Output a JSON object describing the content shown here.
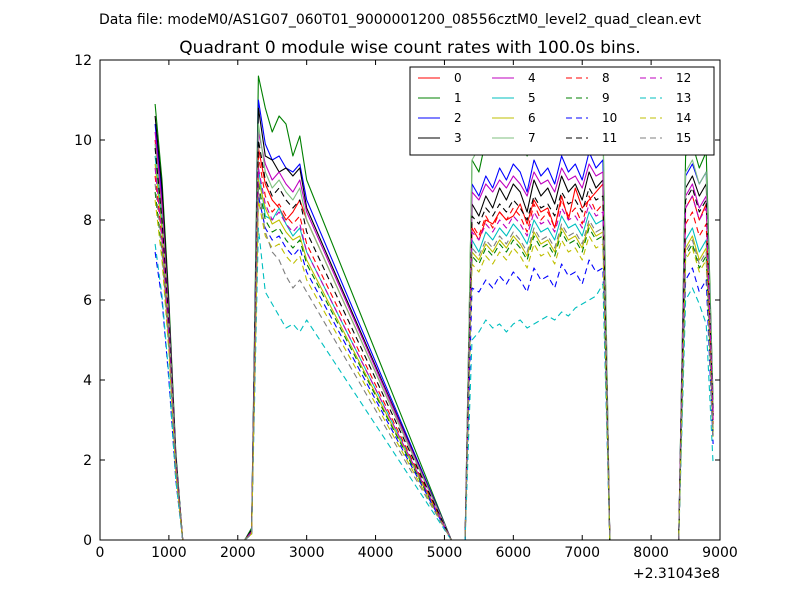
{
  "suptitle": "Data file: modeM0/AS1G07_060T01_9000001200_08556cztM0_level2_quad_clean.evt",
  "chart_data": {
    "type": "line",
    "title": "Quadrant 0 module wise count rates with 100.0s bins.",
    "xlabel": "",
    "ylabel": "",
    "x_offset_label": "+2.31043e8",
    "xlim": [
      0,
      9000
    ],
    "ylim": [
      0,
      12
    ],
    "xticks": [
      0,
      1000,
      2000,
      3000,
      4000,
      5000,
      6000,
      7000,
      8000,
      9000
    ],
    "yticks": [
      0,
      2,
      4,
      6,
      8,
      10,
      12
    ],
    "grid": false,
    "legend_position": "top-right",
    "segments": [
      {
        "start": 800,
        "n": 5
      },
      {
        "start": 2100,
        "n": 10
      },
      {
        "start": 5100,
        "n": 23
      },
      {
        "start": 7400,
        "n": 3
      },
      {
        "start": 8300,
        "n": 7
      }
    ],
    "series": [
      {
        "name": "0",
        "color": "#ff0000",
        "dash": "solid",
        "y": [
          [
            10.0,
            8.2,
            5.5,
            2.0,
            0
          ],
          [
            0,
            0.2,
            9.8,
            8.9,
            8.5,
            8.3,
            8.0,
            8.2,
            8.5,
            8.0
          ],
          [
            0,
            0,
            0,
            7.8,
            7.5,
            8.0,
            7.9,
            8.2,
            8.0,
            8.1,
            8.4,
            7.9,
            8.5,
            8.2,
            8.3,
            7.8,
            8.6,
            8.0,
            8.8,
            8.3,
            8.5,
            8.7,
            8.9
          ],
          [
            0,
            0,
            0
          ],
          [
            0,
            0,
            8.3,
            8.6,
            8.0,
            8.4,
            3.0
          ]
        ]
      },
      {
        "name": "1",
        "color": "#008000",
        "dash": "solid",
        "y": [
          [
            10.9,
            9.0,
            6.0,
            2.2,
            0
          ],
          [
            0,
            0.3,
            11.6,
            10.8,
            10.2,
            10.6,
            10.4,
            9.6,
            10.1,
            9.0
          ],
          [
            0,
            0,
            0,
            9.5,
            9.2,
            10.0,
            9.8,
            10.2,
            9.9,
            10.3,
            10.1,
            9.6,
            10.4,
            10.0,
            10.2,
            9.8,
            10.5,
            10.1,
            10.3,
            9.9,
            10.6,
            10.2,
            10.4
          ],
          [
            0,
            0,
            0
          ],
          [
            0,
            0,
            9.6,
            9.9,
            9.3,
            9.7,
            3.5
          ]
        ]
      },
      {
        "name": "2",
        "color": "#0000ff",
        "dash": "solid",
        "y": [
          [
            10.4,
            8.6,
            5.7,
            2.1,
            0
          ],
          [
            0,
            0.25,
            11.0,
            9.9,
            9.5,
            9.6,
            9.3,
            9.2,
            9.4,
            8.5
          ],
          [
            0,
            0,
            0,
            8.9,
            8.6,
            9.1,
            8.8,
            9.3,
            9.0,
            9.4,
            9.2,
            8.7,
            9.5,
            9.1,
            9.3,
            8.9,
            9.6,
            9.2,
            9.4,
            9.0,
            9.7,
            9.3,
            9.5
          ],
          [
            0,
            0,
            0
          ],
          [
            0,
            0,
            9.1,
            9.4,
            8.9,
            9.2,
            3.3
          ]
        ]
      },
      {
        "name": "3",
        "color": "#000000",
        "dash": "solid",
        "y": [
          [
            10.6,
            8.8,
            5.8,
            2.1,
            0
          ],
          [
            0,
            0.25,
            10.8,
            9.6,
            9.5,
            9.2,
            9.3,
            9.1,
            9.3,
            8.3
          ],
          [
            0,
            0,
            0,
            8.4,
            8.1,
            8.6,
            8.3,
            8.8,
            8.5,
            8.9,
            8.7,
            8.2,
            9.0,
            8.6,
            8.8,
            8.4,
            9.1,
            8.7,
            8.9,
            8.5,
            9.2,
            8.8,
            9.0
          ],
          [
            0,
            0,
            0
          ],
          [
            0,
            0,
            8.8,
            9.1,
            8.6,
            8.9,
            3.2
          ]
        ]
      },
      {
        "name": "4",
        "color": "#bf00bf",
        "dash": "solid",
        "y": [
          [
            10.2,
            8.4,
            5.6,
            2.0,
            0
          ],
          [
            0,
            0.2,
            10.2,
            9.4,
            9.0,
            9.2,
            8.9,
            8.7,
            9.0,
            8.2
          ],
          [
            0,
            0,
            0,
            8.7,
            8.5,
            8.9,
            8.7,
            9.0,
            8.8,
            9.1,
            8.9,
            8.6,
            9.2,
            8.9,
            9.0,
            8.7,
            9.3,
            9.0,
            9.1,
            8.8,
            9.4,
            9.1,
            9.2
          ],
          [
            0,
            0,
            0
          ],
          [
            0,
            0,
            8.6,
            8.9,
            8.3,
            8.6,
            3.1
          ]
        ]
      },
      {
        "name": "5",
        "color": "#00bfbf",
        "dash": "solid",
        "y": [
          [
            9.6,
            7.9,
            5.3,
            1.9,
            0
          ],
          [
            0,
            0.2,
            9.3,
            8.1,
            8.0,
            8.3,
            7.9,
            7.6,
            7.8,
            7.2
          ],
          [
            0,
            0,
            0,
            7.5,
            7.2,
            7.7,
            7.5,
            7.8,
            7.6,
            7.9,
            7.7,
            7.4,
            8.0,
            7.7,
            7.8,
            7.5,
            8.1,
            7.8,
            7.9,
            7.6,
            8.2,
            7.9,
            8.0
          ],
          [
            0,
            0,
            0
          ],
          [
            0,
            0,
            7.5,
            7.8,
            7.2,
            7.5,
            2.8
          ]
        ]
      },
      {
        "name": "6",
        "color": "#bfbf00",
        "dash": "solid",
        "y": [
          [
            9.4,
            7.7,
            5.2,
            1.9,
            0
          ],
          [
            0,
            0.2,
            9.0,
            8.3,
            7.9,
            8.0,
            7.7,
            7.5,
            7.6,
            7.0
          ],
          [
            0,
            0,
            0,
            7.2,
            7.0,
            7.4,
            7.2,
            7.5,
            7.3,
            7.6,
            7.4,
            7.1,
            7.7,
            7.4,
            7.5,
            7.2,
            7.8,
            7.5,
            7.6,
            7.3,
            7.9,
            7.6,
            7.7
          ],
          [
            0,
            0,
            0
          ],
          [
            0,
            0,
            7.3,
            7.6,
            7.0,
            7.3,
            2.7
          ]
        ]
      },
      {
        "name": "7",
        "color": "#7fbf7f",
        "dash": "solid",
        "y": [
          [
            9.9,
            8.1,
            5.4,
            2.0,
            0
          ],
          [
            0,
            0.2,
            10.4,
            9.2,
            8.8,
            9.0,
            8.7,
            8.5,
            8.8,
            8.0
          ],
          [
            0,
            0,
            0,
            9.5,
            9.8,
            10.1,
            9.9,
            10.4,
            10.0,
            10.5,
            10.2,
            9.8,
            10.6,
            10.1,
            10.9,
            10.4,
            10.6,
            10.1,
            10.5,
            10.3,
            10.7,
            10.4,
            10.6
          ],
          [
            0,
            0,
            0
          ],
          [
            0,
            0,
            9.2,
            9.5,
            8.9,
            9.2,
            3.4
          ]
        ]
      },
      {
        "name": "8",
        "color": "#ff0000",
        "dash": "dashed",
        "y": [
          [
            9.1,
            7.5,
            5.0,
            1.8,
            0
          ],
          [
            0,
            0.2,
            9.6,
            8.6,
            8.2,
            8.4,
            8.1,
            7.9,
            8.1,
            7.4
          ],
          [
            0,
            0,
            0,
            7.9,
            7.6,
            8.1,
            7.8,
            8.2,
            8.0,
            8.3,
            8.1,
            7.7,
            8.4,
            8.0,
            8.2,
            7.8,
            8.5,
            8.1,
            8.3,
            7.9,
            8.6,
            8.2,
            8.4
          ],
          [
            0,
            0,
            0
          ],
          [
            0,
            0,
            7.9,
            8.2,
            7.6,
            7.9,
            2.9
          ]
        ]
      },
      {
        "name": "9",
        "color": "#008000",
        "dash": "dashed",
        "y": [
          [
            8.7,
            7.2,
            4.8,
            1.8,
            0
          ],
          [
            0,
            0.15,
            8.9,
            8.0,
            7.7,
            7.8,
            7.5,
            7.3,
            7.5,
            6.9
          ],
          [
            0,
            0,
            0,
            7.1,
            6.9,
            7.3,
            7.1,
            7.4,
            7.2,
            7.5,
            7.3,
            7.0,
            7.6,
            7.3,
            7.4,
            7.1,
            7.7,
            7.4,
            7.5,
            7.2,
            7.8,
            7.5,
            7.6
          ],
          [
            0,
            0,
            0
          ],
          [
            0,
            0,
            7.1,
            7.4,
            6.8,
            7.1,
            2.6
          ]
        ]
      },
      {
        "name": "10",
        "color": "#0000ff",
        "dash": "dashed",
        "y": [
          [
            7.2,
            6.0,
            4.0,
            1.5,
            0
          ],
          [
            0,
            0.15,
            8.6,
            7.8,
            7.5,
            7.6,
            7.3,
            7.1,
            7.3,
            6.7
          ],
          [
            0,
            0,
            0,
            6.3,
            6.2,
            6.5,
            6.3,
            6.6,
            6.4,
            6.7,
            6.5,
            6.2,
            6.8,
            6.5,
            6.6,
            6.3,
            6.9,
            6.6,
            6.7,
            6.4,
            7.0,
            6.7,
            6.8
          ],
          [
            0,
            0,
            0
          ],
          [
            0,
            0,
            6.5,
            6.8,
            6.2,
            6.5,
            2.4
          ]
        ]
      },
      {
        "name": "11",
        "color": "#000000",
        "dash": "dashed",
        "y": [
          [
            9.8,
            8.0,
            5.4,
            2.0,
            0
          ],
          [
            0,
            0.2,
            10.0,
            9.0,
            8.6,
            8.8,
            8.5,
            8.3,
            8.5,
            7.7
          ],
          [
            0,
            0,
            0,
            8.1,
            7.9,
            8.3,
            8.1,
            8.4,
            8.2,
            8.5,
            8.3,
            8.0,
            8.6,
            8.3,
            8.4,
            8.1,
            8.7,
            8.4,
            8.5,
            8.2,
            8.8,
            8.5,
            8.6
          ],
          [
            0,
            0,
            0
          ],
          [
            0,
            0,
            8.5,
            8.8,
            8.2,
            8.5,
            3.1
          ]
        ]
      },
      {
        "name": "12",
        "color": "#bf00bf",
        "dash": "dashed",
        "y": [
          [
            9.3,
            7.6,
            5.1,
            1.9,
            0
          ],
          [
            0,
            0.2,
            9.3,
            8.4,
            8.0,
            8.2,
            7.9,
            7.7,
            7.9,
            7.2
          ],
          [
            0,
            0,
            0,
            7.7,
            7.5,
            7.9,
            7.7,
            8.0,
            7.8,
            8.1,
            7.9,
            7.6,
            8.2,
            7.9,
            8.0,
            7.7,
            8.3,
            8.0,
            8.1,
            7.8,
            8.4,
            8.1,
            8.2
          ],
          [
            0,
            0,
            0
          ],
          [
            0,
            0,
            8.3,
            8.6,
            8.0,
            8.3,
            3.0
          ]
        ]
      },
      {
        "name": "13",
        "color": "#00bfbf",
        "dash": "dashed",
        "y": [
          [
            7.4,
            6.1,
            4.1,
            1.5,
            0
          ],
          [
            0,
            0.15,
            7.8,
            6.2,
            5.9,
            5.6,
            5.3,
            5.4,
            5.2,
            5.5
          ],
          [
            0,
            0,
            0,
            5.0,
            5.2,
            5.5,
            5.3,
            5.4,
            5.2,
            5.4,
            5.5,
            5.3,
            5.4,
            5.5,
            5.6,
            5.5,
            5.7,
            5.6,
            5.8,
            5.9,
            6.0,
            6.1,
            6.4
          ],
          [
            0,
            0,
            0
          ],
          [
            0,
            0,
            6.0,
            6.3,
            5.9,
            5.4,
            1.9
          ]
        ]
      },
      {
        "name": "14",
        "color": "#bfbf00",
        "dash": "dashed",
        "y": [
          [
            8.5,
            7.0,
            4.7,
            1.7,
            0
          ],
          [
            0,
            0.15,
            8.5,
            7.6,
            7.3,
            7.4,
            7.1,
            6.9,
            7.1,
            6.5
          ],
          [
            0,
            0,
            0,
            6.9,
            6.7,
            7.1,
            6.9,
            7.2,
            7.0,
            7.3,
            7.1,
            6.8,
            7.4,
            7.1,
            7.2,
            6.9,
            7.5,
            7.2,
            7.3,
            7.0,
            7.6,
            7.3,
            7.4
          ],
          [
            0,
            0,
            0
          ],
          [
            0,
            0,
            7.0,
            7.3,
            6.7,
            7.0,
            2.5
          ]
        ]
      },
      {
        "name": "15",
        "color": "#7f7f7f",
        "dash": "dashed",
        "y": [
          [
            8.9,
            7.3,
            4.9,
            1.8,
            0
          ],
          [
            0,
            0.15,
            8.8,
            7.7,
            7.2,
            7.0,
            6.6,
            6.3,
            6.5,
            6.2
          ],
          [
            0,
            0,
            0,
            7.3,
            7.1,
            7.5,
            7.3,
            7.6,
            7.4,
            7.7,
            7.5,
            7.2,
            7.8,
            7.5,
            7.6,
            7.3,
            7.9,
            7.6,
            7.7,
            7.4,
            8.0,
            7.7,
            7.8
          ],
          [
            0,
            0,
            0
          ],
          [
            0,
            0,
            7.2,
            7.5,
            6.9,
            7.2,
            2.6
          ]
        ]
      }
    ]
  }
}
